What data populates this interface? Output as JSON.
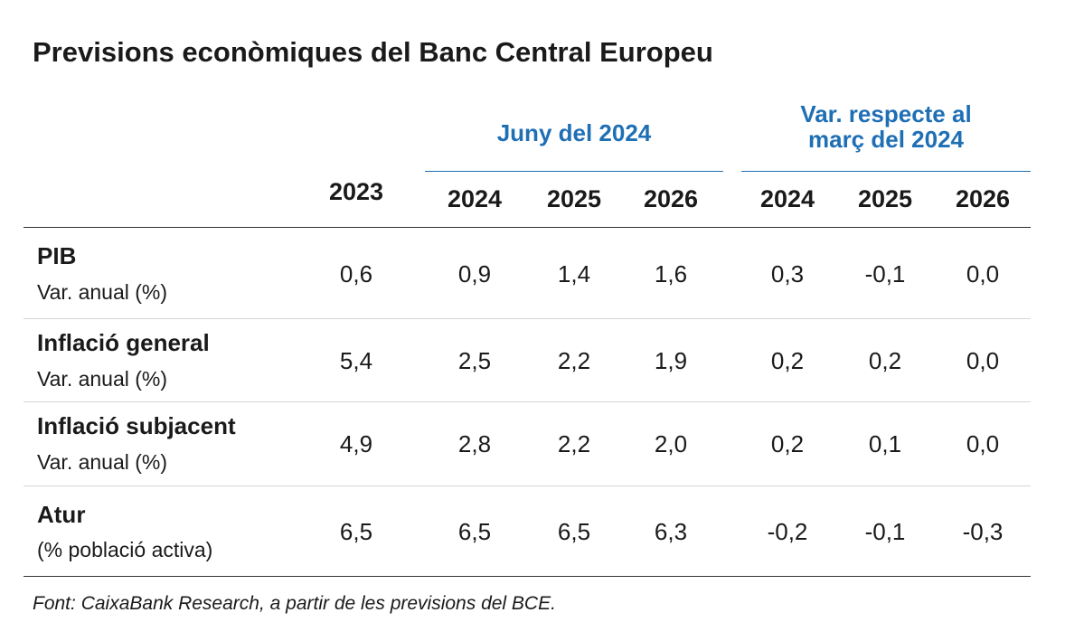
{
  "title": "Previsions econòmiques del Banc Central Europeu",
  "groups": {
    "june": "Juny del 2024",
    "var_line1": "Var. respecte al",
    "var_line2": "març del 2024"
  },
  "columns": [
    "2023",
    "2024",
    "2025",
    "2026",
    "2024",
    "2025",
    "2026"
  ],
  "rows": [
    {
      "label": "PIB",
      "sub": "Var. anual (%)",
      "values": [
        "0,6",
        "0,9",
        "1,4",
        "1,6",
        "0,3",
        "-0,1",
        "0,0"
      ]
    },
    {
      "label": "Inflació general",
      "sub": "Var. anual (%)",
      "values": [
        "5,4",
        "2,5",
        "2,2",
        "1,9",
        "0,2",
        "0,2",
        "0,0"
      ]
    },
    {
      "label": "Inflació subjacent",
      "sub": "Var. anual (%)",
      "values": [
        "4,9",
        "2,8",
        "2,2",
        "2,0",
        "0,2",
        "0,1",
        "0,0"
      ]
    },
    {
      "label": "Atur",
      "sub": "(% població activa)",
      "values": [
        "6,5",
        "6,5",
        "6,5",
        "6,3",
        "-0,2",
        "-0,1",
        "-0,3"
      ]
    }
  ],
  "source": "Font: CaixaBank Research, a partir de les previsions del BCE.",
  "colors": {
    "accent": "#1f6fb5",
    "text": "#1a1a1a",
    "rule": "#333333",
    "divider": "#d6d6d6"
  }
}
